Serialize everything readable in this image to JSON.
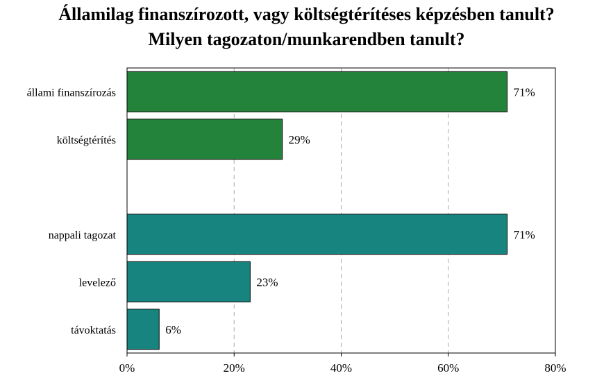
{
  "chart_data": {
    "type": "bar",
    "orientation": "horizontal",
    "title": "Államilag finanszírozott, vagy költségtérítéses képzésben tanult?",
    "subtitle": "Milyen tagozaton/munkarendben tanult?",
    "categories": [
      "állami finanszírozás",
      "költségtérítés",
      "",
      "nappali tagozat",
      "levelező",
      "távoktatás"
    ],
    "values": [
      71,
      29,
      null,
      71,
      23,
      6
    ],
    "value_labels": [
      "71%",
      "29%",
      "",
      "71%",
      "23%",
      "6%"
    ],
    "bar_colors": [
      "#24833b",
      "#24833b",
      null,
      "#17847f",
      "#17847f",
      "#17847f"
    ],
    "xlim": [
      0,
      80
    ],
    "xticks": [
      0,
      20,
      40,
      60,
      80
    ],
    "xtick_labels": [
      "0%",
      "20%",
      "40%",
      "60%",
      "80%"
    ],
    "grid": "vertical dashed",
    "xlabel": "",
    "ylabel": ""
  }
}
